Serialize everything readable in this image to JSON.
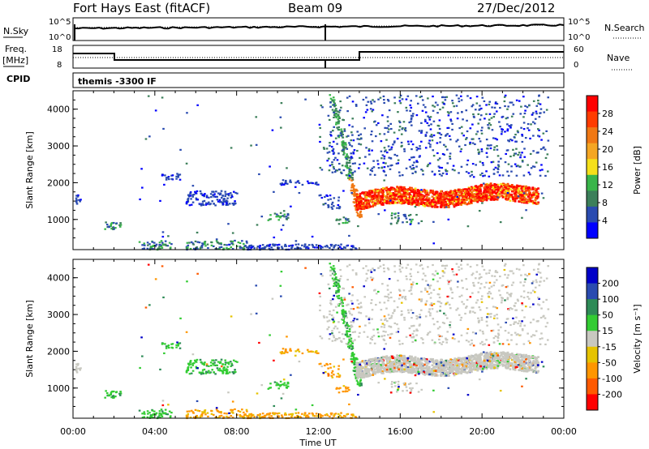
{
  "header": {
    "station": "Fort Hays East (fitACF)",
    "beam": "Beam 09",
    "date": "27/Dec/2012"
  },
  "panels": {
    "noise": {
      "left_label": "N.Sky",
      "right_label": "N.Search",
      "left_ticks": [
        "10^5",
        "10^0"
      ],
      "right_ticks": [
        "10^5",
        "10^0"
      ]
    },
    "freq": {
      "left_label_1": "Freq.",
      "left_label_2": "[MHz]",
      "right_label": "Nave",
      "left_ticks": [
        "18",
        "8"
      ],
      "right_ticks": [
        "60",
        "0"
      ]
    },
    "cpid": {
      "label": "CPID",
      "value": "themis -3300 IF"
    }
  },
  "colors": {
    "power": [
      "#0000ff",
      "#2a4bb0",
      "#3c7f5a",
      "#39b54a",
      "#f5e01a",
      "#f5a623",
      "#f07814",
      "#ff3c00",
      "#ff0000"
    ],
    "velocity": [
      "#ff0000",
      "#ff5a00",
      "#ff9600",
      "#e6c300",
      "#c8c8c0",
      "#33cc33",
      "#2e8b57",
      "#2a4bb0",
      "#0000c8"
    ]
  },
  "chart_data": [
    {
      "type": "heatmap",
      "title": "",
      "xlabel": "",
      "ylabel": "Slant Range [km]",
      "x_ticks": [
        "00:00",
        "04:00",
        "08:00",
        "12:00",
        "16:00",
        "20:00",
        "00:00"
      ],
      "y_ticks": [
        "1000",
        "2000",
        "3000",
        "4000"
      ],
      "ylim": [
        180,
        4500
      ],
      "colorbar_label": "Power [dB]",
      "colorbar_ticks": [
        "28",
        "24",
        "20",
        "16",
        "12",
        "8",
        "4"
      ],
      "colorbar_range": [
        0,
        30
      ]
    },
    {
      "type": "heatmap",
      "title": "",
      "xlabel": "Time UT",
      "ylabel": "Slant Range [km]",
      "x_ticks": [
        "00:00",
        "04:00",
        "08:00",
        "12:00",
        "16:00",
        "20:00",
        "00:00"
      ],
      "y_ticks": [
        "1000",
        "2000",
        "3000",
        "4000"
      ],
      "ylim": [
        180,
        4500
      ],
      "colorbar_label": "Velocity [m s⁻¹]",
      "colorbar_ticks": [
        "200",
        "100",
        "50",
        "15",
        "-15",
        "-50",
        "-100",
        "-200"
      ],
      "colorbar_range": [
        -250,
        250
      ]
    }
  ]
}
